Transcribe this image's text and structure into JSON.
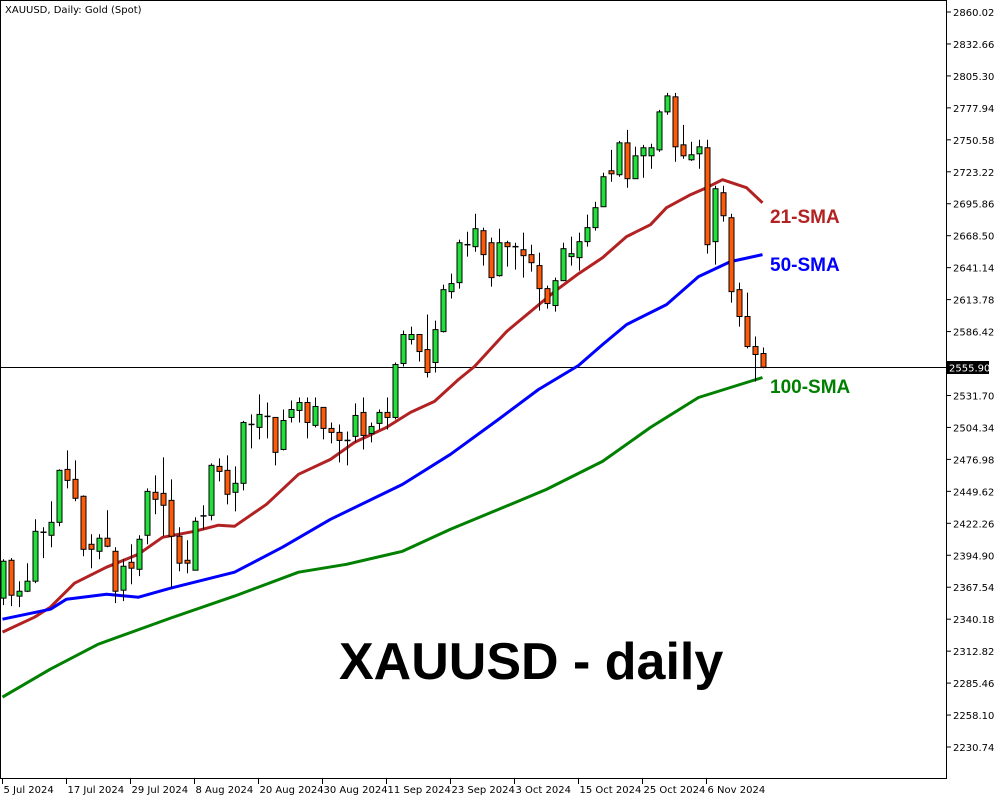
{
  "chart_data": {
    "type": "candlestick",
    "title": "XAUUSD, Daily:  Gold (Spot)",
    "watermark": "XAUUSD - daily",
    "ylim": [
      2230.74,
      2860.02
    ],
    "grid": false,
    "y_ticks": [
      "2860.02",
      "2832.66",
      "2805.30",
      "2777.94",
      "2750.58",
      "2723.22",
      "2695.86",
      "2668.50",
      "2641.14",
      "2613.78",
      "2586.42",
      "2531.70",
      "2504.34",
      "2476.98",
      "2449.62",
      "2422.26",
      "2394.90",
      "2367.54",
      "2340.18",
      "2312.82",
      "2285.46",
      "2258.10",
      "2230.74"
    ],
    "x_ticks": [
      {
        "bar": 0,
        "label": "5 Jul 2024"
      },
      {
        "bar": 8,
        "label": "17 Jul 2024"
      },
      {
        "bar": 16,
        "label": "29 Jul 2024"
      },
      {
        "bar": 24,
        "label": "8 Aug 2024"
      },
      {
        "bar": 32,
        "label": "20 Aug 2024"
      },
      {
        "bar": 40,
        "label": "30 Aug 2024"
      },
      {
        "bar": 48,
        "label": "11 Sep 2024"
      },
      {
        "bar": 56,
        "label": "23 Sep 2024"
      },
      {
        "bar": 64,
        "label": "3 Oct 2024"
      },
      {
        "bar": 72,
        "label": "15 Oct 2024"
      },
      {
        "bar": 80,
        "label": "25 Oct 2024"
      },
      {
        "bar": 88,
        "label": "6 Nov 2024"
      }
    ],
    "current_price": "2555.90",
    "candles_ohlc": [
      [
        2358.2,
        2391.5,
        2352.2,
        2389.8
      ],
      [
        2390.6,
        2392.4,
        2351.3,
        2360.7
      ],
      [
        2359.9,
        2372.7,
        2350.5,
        2364.1
      ],
      [
        2364.1,
        2388.1,
        2363.3,
        2372.7
      ],
      [
        2372.7,
        2425.7,
        2371.0,
        2415.4
      ],
      [
        2413.7,
        2418.9,
        2392.4,
        2414.6
      ],
      [
        2412.0,
        2441.1,
        2401.8,
        2423.1
      ],
      [
        2423.1,
        2468.4,
        2419.7,
        2467.6
      ],
      [
        2468.4,
        2484.7,
        2452.2,
        2459.0
      ],
      [
        2459.9,
        2476.1,
        2441.1,
        2443.7
      ],
      [
        2445.4,
        2446.2,
        2394.1,
        2400.0
      ],
      [
        2404.3,
        2412.9,
        2383.8,
        2400.0
      ],
      [
        2398.3,
        2412.9,
        2391.5,
        2409.5
      ],
      [
        2409.5,
        2433.4,
        2401.8,
        2402.6
      ],
      [
        2398.3,
        2401.8,
        2353.9,
        2364.1
      ],
      [
        2365.0,
        2391.5,
        2355.6,
        2385.5
      ],
      [
        2388.9,
        2404.3,
        2370.1,
        2383.8
      ],
      [
        2382.9,
        2412.0,
        2377.0,
        2408.6
      ],
      [
        2412.0,
        2452.2,
        2404.3,
        2449.6
      ],
      [
        2448.8,
        2463.3,
        2430.0,
        2442.8
      ],
      [
        2447.9,
        2478.7,
        2411.2,
        2437.7
      ],
      [
        2441.9,
        2459.9,
        2366.7,
        2411.2
      ],
      [
        2411.2,
        2418.9,
        2381.2,
        2388.1
      ],
      [
        2390.6,
        2407.7,
        2379.5,
        2388.1
      ],
      [
        2382.1,
        2427.4,
        2382.1,
        2424.0
      ],
      [
        2428.3,
        2437.7,
        2417.1,
        2428.6
      ],
      [
        2429.1,
        2473.6,
        2424.8,
        2471.9
      ],
      [
        2471.0,
        2477.9,
        2458.2,
        2466.7
      ],
      [
        2467.6,
        2480.4,
        2438.5,
        2447.1
      ],
      [
        2448.8,
        2471.0,
        2432.5,
        2456.5
      ],
      [
        2456.5,
        2510.0,
        2450.5,
        2508.6
      ],
      [
        2506.9,
        2515.5,
        2486.4,
        2506.1
      ],
      [
        2504.4,
        2532.6,
        2494.1,
        2515.5
      ],
      [
        2513.8,
        2525.7,
        2495.0,
        2512.9
      ],
      [
        2512.9,
        2512.9,
        2471.9,
        2483.0
      ],
      [
        2485.5,
        2519.7,
        2484.7,
        2510.3
      ],
      [
        2512.9,
        2527.4,
        2508.6,
        2519.7
      ],
      [
        2518.9,
        2530.0,
        2508.6,
        2525.7
      ],
      [
        2525.7,
        2530.0,
        2495.0,
        2508.6
      ],
      [
        2506.1,
        2530.0,
        2504.4,
        2522.3
      ],
      [
        2521.5,
        2521.5,
        2494.1,
        2503.5
      ],
      [
        2503.5,
        2508.6,
        2490.7,
        2500.1
      ],
      [
        2500.1,
        2506.9,
        2474.4,
        2493.2
      ],
      [
        2493.2,
        2500.9,
        2471.9,
        2492.8
      ],
      [
        2496.7,
        2524.9,
        2491.5,
        2514.6
      ],
      [
        2517.2,
        2530.0,
        2485.5,
        2497.5
      ],
      [
        2499.2,
        2508.6,
        2491.5,
        2505.2
      ],
      [
        2507.8,
        2519.7,
        2502.6,
        2517.2
      ],
      [
        2517.2,
        2530.0,
        2502.6,
        2512.9
      ],
      [
        2512.9,
        2559.9,
        2511.2,
        2558.2
      ],
      [
        2559.1,
        2587.3,
        2556.5,
        2583.9
      ],
      [
        2579.6,
        2590.7,
        2575.3,
        2583.9
      ],
      [
        2583.9,
        2583.9,
        2560.8,
        2569.3
      ],
      [
        2571.0,
        2601.0,
        2547.1,
        2551.4
      ],
      [
        2559.9,
        2595.8,
        2551.4,
        2588.1
      ],
      [
        2586.4,
        2626.6,
        2585.6,
        2622.3
      ],
      [
        2620.6,
        2636.0,
        2614.7,
        2627.5
      ],
      [
        2628.3,
        2665.1,
        2623.2,
        2662.5
      ],
      [
        2660.0,
        2671.9,
        2650.6,
        2660.8
      ],
      [
        2659.1,
        2687.3,
        2654.8,
        2674.5
      ],
      [
        2672.8,
        2675.4,
        2642.9,
        2652.3
      ],
      [
        2662.5,
        2666.8,
        2624.9,
        2632.6
      ],
      [
        2634.3,
        2674.5,
        2633.5,
        2662.5
      ],
      [
        2662.5,
        2664.2,
        2642.0,
        2659.1
      ],
      [
        2659.1,
        2662.5,
        2639.4,
        2658.3
      ],
      [
        2656.5,
        2671.1,
        2632.6,
        2651.4
      ],
      [
        2652.3,
        2660.8,
        2637.7,
        2645.4
      ],
      [
        2642.9,
        2654.0,
        2604.4,
        2623.2
      ],
      [
        2623.2,
        2625.8,
        2606.1,
        2610.4
      ],
      [
        2608.7,
        2632.6,
        2603.5,
        2630.0
      ],
      [
        2630.0,
        2662.5,
        2630.0,
        2657.4
      ],
      [
        2650.6,
        2667.7,
        2642.9,
        2653.1
      ],
      [
        2649.7,
        2671.1,
        2638.6,
        2663.4
      ],
      [
        2663.4,
        2686.5,
        2659.1,
        2675.4
      ],
      [
        2675.4,
        2697.6,
        2672.8,
        2692.5
      ],
      [
        2693.3,
        2722.4,
        2693.3,
        2719.0
      ],
      [
        2724.1,
        2742.0,
        2714.7,
        2721.5
      ],
      [
        2720.7,
        2749.7,
        2719.0,
        2748.0
      ],
      [
        2748.0,
        2759.1,
        2709.6,
        2717.3
      ],
      [
        2717.3,
        2744.6,
        2717.3,
        2736.9
      ],
      [
        2736.9,
        2746.3,
        2718.1,
        2743.8
      ],
      [
        2736.9,
        2747.2,
        2725.8,
        2743.8
      ],
      [
        2742.0,
        2776.2,
        2740.3,
        2774.5
      ],
      [
        2774.5,
        2790.8,
        2772.0,
        2788.2
      ],
      [
        2787.4,
        2790.8,
        2731.8,
        2744.6
      ],
      [
        2746.3,
        2763.4,
        2734.4,
        2736.9
      ],
      [
        2733.5,
        2748.9,
        2732.6,
        2737.8
      ],
      [
        2738.6,
        2750.6,
        2725.8,
        2744.6
      ],
      [
        2743.8,
        2750.6,
        2653.1,
        2660.8
      ],
      [
        2663.4,
        2711.3,
        2643.7,
        2708.7
      ],
      [
        2705.3,
        2711.3,
        2680.5,
        2685.6
      ],
      [
        2683.9,
        2687.3,
        2611.2,
        2620.6
      ],
      [
        2622.3,
        2628.3,
        2590.7,
        2599.3
      ],
      [
        2599.3,
        2619.8,
        2572.0,
        2573.6
      ],
      [
        2573.6,
        2582.2,
        2543.7,
        2566.8
      ],
      [
        2567.6,
        2572.8,
        2555.0,
        2555.9
      ]
    ],
    "series": [
      {
        "name": "21-SMA",
        "color": "#b22222",
        "points": [
          [
            0,
            2329.1
          ],
          [
            4,
            2341.9
          ],
          [
            6,
            2350.5
          ],
          [
            9,
            2371.0
          ],
          [
            13,
            2384.7
          ],
          [
            17,
            2395.8
          ],
          [
            20,
            2410.3
          ],
          [
            24,
            2415.4
          ],
          [
            27,
            2420.6
          ],
          [
            29,
            2419.7
          ],
          [
            33,
            2438.5
          ],
          [
            37,
            2464.2
          ],
          [
            41,
            2477.0
          ],
          [
            44,
            2491.5
          ],
          [
            48,
            2504.4
          ],
          [
            51,
            2517.2
          ],
          [
            54,
            2526.6
          ],
          [
            57,
            2545.4
          ],
          [
            59,
            2556.5
          ],
          [
            63,
            2586.4
          ],
          [
            69,
            2620.6
          ],
          [
            72,
            2636.0
          ],
          [
            75,
            2649.7
          ],
          [
            78,
            2667.7
          ],
          [
            81,
            2677.9
          ],
          [
            83,
            2692.5
          ],
          [
            86,
            2703.6
          ],
          [
            88,
            2709.6
          ],
          [
            90,
            2716.4
          ],
          [
            93,
            2709.6
          ],
          [
            95,
            2696.7
          ]
        ]
      },
      {
        "name": "50-SMA",
        "color": "#0000ff",
        "points": [
          [
            0,
            2340.2
          ],
          [
            6,
            2348.7
          ],
          [
            8,
            2357.3
          ],
          [
            13,
            2361.6
          ],
          [
            17,
            2359.0
          ],
          [
            21,
            2366.7
          ],
          [
            29,
            2380.4
          ],
          [
            35,
            2401.8
          ],
          [
            41,
            2425.7
          ],
          [
            50,
            2455.6
          ],
          [
            56,
            2481.3
          ],
          [
            62,
            2511.2
          ],
          [
            67,
            2536.8
          ],
          [
            72,
            2557.4
          ],
          [
            75,
            2575.3
          ],
          [
            78,
            2592.4
          ],
          [
            83,
            2609.5
          ],
          [
            87,
            2633.5
          ],
          [
            91,
            2646.3
          ],
          [
            95,
            2652.3
          ]
        ]
      },
      {
        "name": "100-SMA",
        "color": "#008000",
        "points": [
          [
            0,
            2273.5
          ],
          [
            6,
            2297.4
          ],
          [
            12,
            2318.8
          ],
          [
            21,
            2341.1
          ],
          [
            29,
            2359.9
          ],
          [
            37,
            2380.4
          ],
          [
            43,
            2387.2
          ],
          [
            50,
            2398.3
          ],
          [
            56,
            2417.1
          ],
          [
            62,
            2434.2
          ],
          [
            68,
            2451.3
          ],
          [
            75,
            2475.3
          ],
          [
            81,
            2504.4
          ],
          [
            87,
            2530.0
          ],
          [
            93,
            2542.8
          ],
          [
            95,
            2547.1
          ]
        ]
      }
    ],
    "colors": {
      "bull": "#22e03a",
      "bear": "#ff5a0a",
      "outline": "#000000"
    }
  }
}
